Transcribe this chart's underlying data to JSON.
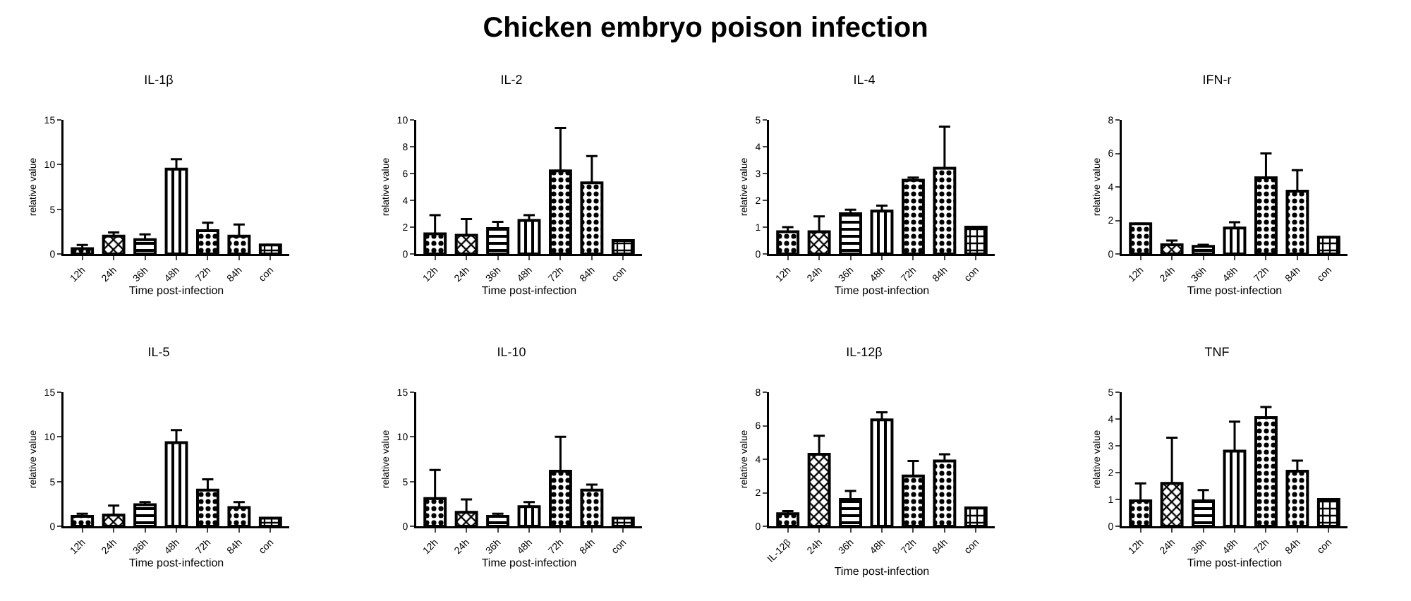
{
  "chart_data": [
    {
      "type": "other",
      "title": "Chicken embryo poison infection"
    },
    {
      "type": "bar",
      "title": "IL-1β",
      "xlabel": "Time post-infection",
      "ylabel": "relative value",
      "categories": [
        "12h",
        "24h",
        "36h",
        "48h",
        "72h",
        "84h",
        "con"
      ],
      "color": "#000000",
      "values": [
        0.6,
        2.0,
        1.6,
        9.5,
        2.6,
        2.0,
        1.0
      ],
      "errors": [
        [
          0.6,
          1.0
        ],
        [
          2.0,
          2.4
        ],
        [
          1.6,
          2.2
        ],
        [
          9.5,
          10.6
        ],
        [
          2.6,
          3.5
        ],
        [
          2.0,
          3.3
        ],
        null
      ],
      "ylim": [
        0,
        15
      ],
      "yticks": [
        0,
        5,
        10,
        15
      ]
    },
    {
      "type": "bar",
      "title": "IL-2",
      "xlabel": "Time post-infection",
      "ylabel": "relative value",
      "categories": [
        "12h",
        "24h",
        "36h",
        "48h",
        "72h",
        "84h",
        "con"
      ],
      "color": "#000000",
      "values": [
        1.5,
        1.4,
        1.9,
        2.5,
        6.2,
        5.3,
        1.0
      ],
      "errors": [
        [
          1.5,
          2.9
        ],
        [
          1.4,
          2.6
        ],
        [
          1.9,
          2.4
        ],
        [
          2.5,
          2.9
        ],
        [
          6.2,
          9.4
        ],
        [
          5.3,
          7.3
        ],
        null
      ],
      "ylim": [
        0,
        10
      ],
      "yticks": [
        0,
        2,
        4,
        6,
        8,
        10
      ]
    },
    {
      "type": "bar",
      "title": "IL-4",
      "xlabel": "Time post-infection",
      "ylabel": "relative value",
      "categories": [
        "12h",
        "24h",
        "36h",
        "48h",
        "72h",
        "84h",
        "con"
      ],
      "color": "#000000",
      "values": [
        0.83,
        0.83,
        1.5,
        1.6,
        2.75,
        3.2,
        1.0
      ],
      "errors": [
        [
          0.83,
          1.0
        ],
        [
          0.83,
          1.4
        ],
        [
          1.5,
          1.65
        ],
        [
          1.6,
          1.8
        ],
        [
          2.75,
          2.85
        ],
        [
          3.2,
          4.75
        ],
        null
      ],
      "ylim": [
        0,
        5
      ],
      "yticks": [
        0,
        1,
        2,
        3,
        4,
        5
      ]
    },
    {
      "type": "bar",
      "title": "IFN-r",
      "xlabel": "Time post-infection",
      "ylabel": "relative value",
      "categories": [
        "12h",
        "24h",
        "36h",
        "48h",
        "72h",
        "84h",
        "con"
      ],
      "color": "#000000",
      "values": [
        1.8,
        0.55,
        0.45,
        1.55,
        4.55,
        3.75,
        1.0
      ],
      "errors": [
        null,
        [
          0.55,
          0.8
        ],
        [
          0.45,
          0.55
        ],
        [
          1.55,
          1.9
        ],
        [
          4.55,
          6.0
        ],
        [
          3.75,
          5.0
        ],
        null
      ],
      "ylim": [
        0,
        8
      ],
      "yticks": [
        0,
        2,
        4,
        6,
        8
      ]
    },
    {
      "type": "bar",
      "title": "IL-5",
      "xlabel": "Time post-infection",
      "ylabel": "relative value",
      "categories": [
        "12h",
        "24h",
        "36h",
        "48h",
        "72h",
        "84h",
        "con"
      ],
      "color": "#000000",
      "values": [
        1.1,
        1.25,
        2.4,
        9.35,
        4.05,
        2.1,
        0.9
      ],
      "errors": [
        [
          1.1,
          1.4
        ],
        [
          1.25,
          2.3
        ],
        [
          2.4,
          2.7
        ],
        [
          9.35,
          10.75
        ],
        [
          4.05,
          5.25
        ],
        [
          2.1,
          2.7
        ],
        null
      ],
      "ylim": [
        0,
        15
      ],
      "yticks": [
        0,
        5,
        10,
        15
      ]
    },
    {
      "type": "bar",
      "title": "IL-10",
      "xlabel": "Time post-infection",
      "ylabel": "relative value",
      "categories": [
        "12h",
        "24h",
        "36h",
        "48h",
        "72h",
        "84h",
        "con"
      ],
      "color": "#000000",
      "values": [
        3.1,
        1.55,
        1.1,
        2.2,
        6.15,
        4.05,
        0.9
      ],
      "errors": [
        [
          3.1,
          6.3
        ],
        [
          1.55,
          3.0
        ],
        [
          1.1,
          1.4
        ],
        [
          2.2,
          2.7
        ],
        [
          6.15,
          10.0
        ],
        [
          4.05,
          4.65
        ],
        null
      ],
      "ylim": [
        0,
        15
      ],
      "yticks": [
        0,
        5,
        10,
        15
      ]
    },
    {
      "type": "bar",
      "title": "IL-12β",
      "xlabel": "Time post-infection",
      "ylabel": "relative value",
      "categories": [
        "IL-12β",
        "24h",
        "36h",
        "48h",
        "72h",
        "84h",
        "con"
      ],
      "color": "#000000",
      "values": [
        0.75,
        4.3,
        1.6,
        6.35,
        3.0,
        3.9,
        1.1
      ],
      "errors": [
        [
          0.75,
          0.9
        ],
        [
          4.3,
          5.4
        ],
        [
          1.6,
          2.1
        ],
        [
          6.35,
          6.8
        ],
        [
          3.0,
          3.9
        ],
        [
          3.9,
          4.3
        ],
        null
      ],
      "ylim": [
        0,
        8
      ],
      "yticks": [
        0,
        2,
        4,
        6,
        8
      ]
    },
    {
      "type": "bar",
      "title": "TNF",
      "xlabel": "Time post-infection",
      "ylabel": "relative value",
      "categories": [
        "12h",
        "24h",
        "36h",
        "48h",
        "72h",
        "84h",
        "con"
      ],
      "color": "#000000",
      "values": [
        0.95,
        1.6,
        0.95,
        2.8,
        4.05,
        2.05,
        1.0
      ],
      "errors": [
        [
          0.95,
          1.6
        ],
        [
          1.6,
          3.3
        ],
        [
          0.95,
          1.35
        ],
        [
          2.8,
          3.9
        ],
        [
          4.05,
          4.45
        ],
        [
          2.05,
          2.45
        ],
        null
      ],
      "ylim": [
        0,
        5
      ],
      "yticks": [
        0,
        1,
        2,
        3,
        4,
        5
      ]
    }
  ]
}
